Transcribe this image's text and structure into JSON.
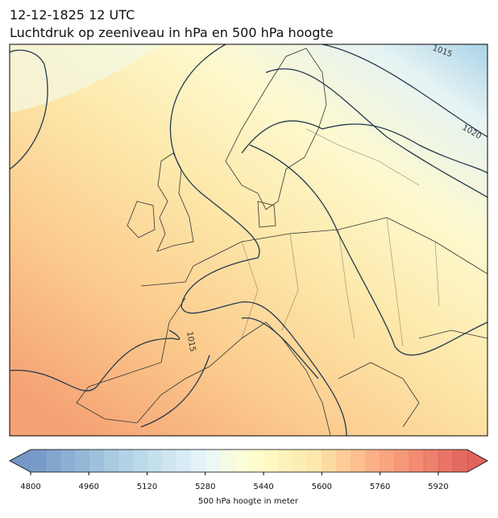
{
  "title": {
    "line1": "12-12-1825 12 UTC",
    "line2": "Luchtdruk op zeeniveau in hPa en 500 hPa hoogte"
  },
  "map": {
    "contour_labels": [
      "1015",
      "1020",
      "1015"
    ]
  },
  "colorbar": {
    "label": "500 hPa hoogte in meter",
    "lim": [
      4800,
      6000
    ],
    "ticks": [
      4800,
      4960,
      5120,
      5280,
      5440,
      5600,
      5760,
      5920
    ]
  }
}
